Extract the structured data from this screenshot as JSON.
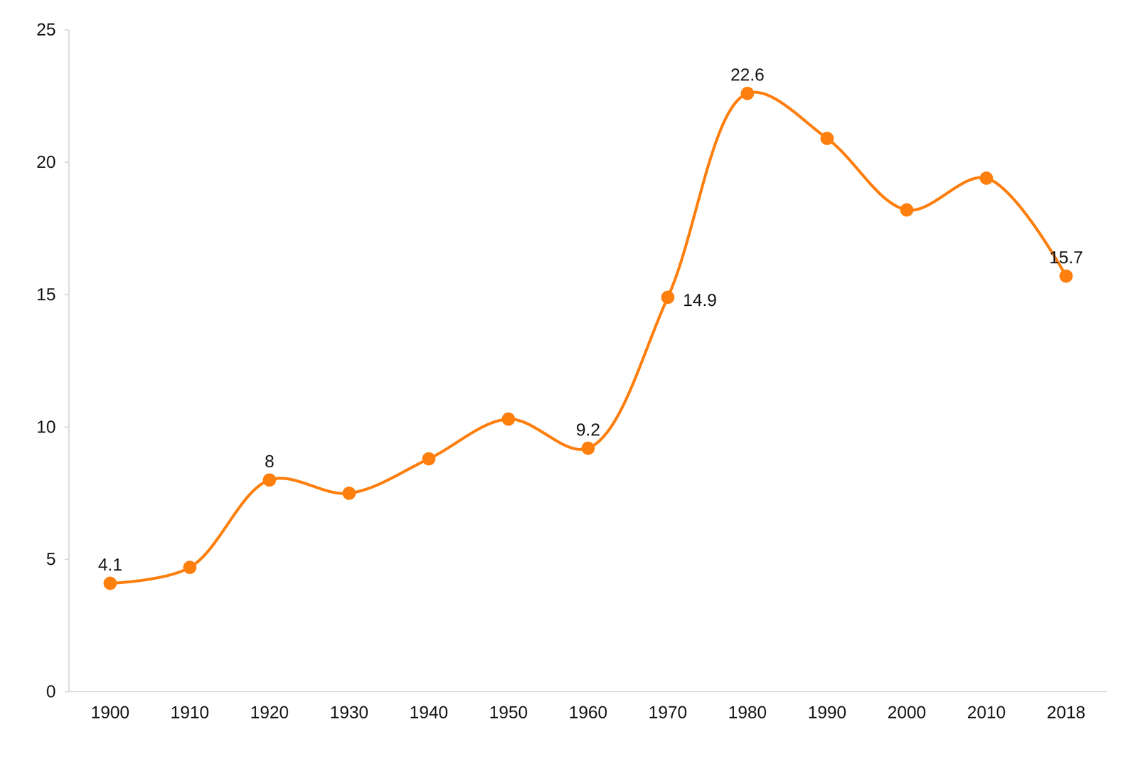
{
  "chart_data": {
    "type": "line",
    "categories": [
      "1900",
      "1910",
      "1920",
      "1930",
      "1940",
      "1950",
      "1960",
      "1970",
      "1980",
      "1990",
      "2000",
      "2010",
      "2018"
    ],
    "values": [
      4.1,
      4.7,
      8,
      7.5,
      8.8,
      10.3,
      9.2,
      14.9,
      22.6,
      20.9,
      18.2,
      19.4,
      15.7
    ],
    "value_labels": [
      "4.1",
      null,
      "8",
      null,
      null,
      null,
      "9.2",
      "14.9",
      "22.6",
      null,
      null,
      null,
      "15.7"
    ],
    "data_labels": true,
    "color": "#fd7f0e",
    "marker": "circle",
    "line_style": "solid",
    "ylim": [
      0,
      25
    ],
    "yticks": [
      0,
      5,
      10,
      15,
      20,
      25
    ],
    "grid": false
  }
}
